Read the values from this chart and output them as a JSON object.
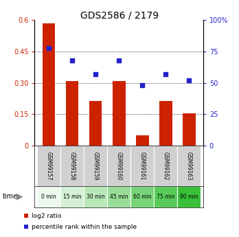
{
  "title": "GDS2586 / 2179",
  "samples": [
    "GSM99157",
    "GSM99158",
    "GSM99159",
    "GSM99160",
    "GSM99161",
    "GSM99162",
    "GSM99163"
  ],
  "time_labels": [
    "0 min",
    "15 min",
    "30 min",
    "45 min",
    "60 min",
    "75 min",
    "90 min"
  ],
  "log2_ratio": [
    0.585,
    0.31,
    0.215,
    0.31,
    0.05,
    0.215,
    0.155
  ],
  "percentile_rank": [
    78,
    68,
    57,
    68,
    48,
    57,
    52
  ],
  "bar_color": "#cc2200",
  "dot_color": "#2222cc",
  "left_ylim": [
    0,
    0.6
  ],
  "right_ylim": [
    0,
    100
  ],
  "left_yticks": [
    0,
    0.15,
    0.3,
    0.45,
    0.6
  ],
  "right_yticks": [
    0,
    25,
    50,
    75,
    100
  ],
  "left_ytick_labels": [
    "0",
    "0.15",
    "0.30",
    "0.45",
    "0.6"
  ],
  "right_ytick_labels": [
    "0",
    "25",
    "50",
    "75",
    "100%"
  ],
  "title_fontsize": 10,
  "axis_label_color_left": "#cc2200",
  "axis_label_color_right": "#2222cc",
  "sample_bg_color": "#d0d0d0",
  "time_greens": [
    "#edf8ed",
    "#d4f0d4",
    "#b8e8b8",
    "#98de98",
    "#78d478",
    "#58ca58",
    "#38c038"
  ],
  "legend_items": [
    "log2 ratio",
    "percentile rank within the sample"
  ],
  "legend_colors": [
    "#cc2200",
    "#2222cc"
  ]
}
